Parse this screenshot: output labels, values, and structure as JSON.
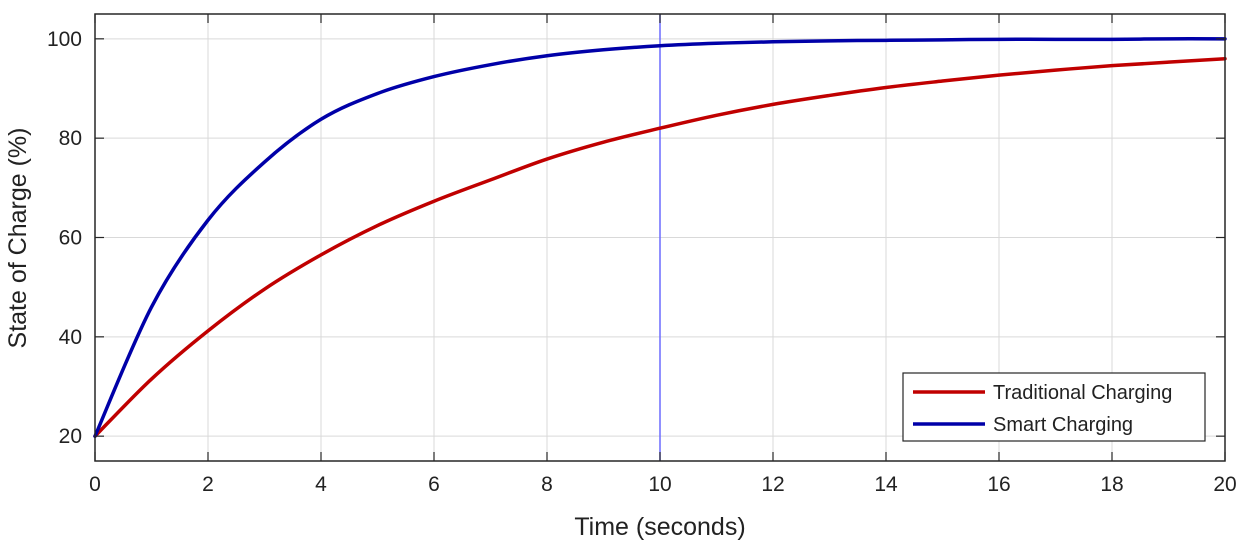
{
  "chart_data": {
    "type": "line",
    "xlabel": "Time (seconds)",
    "ylabel": "State of Charge (%)",
    "xlim": [
      0,
      20
    ],
    "ylim": [
      15,
      105
    ],
    "xticks": [
      "0",
      "2",
      "4",
      "6",
      "8",
      "10",
      "12",
      "14",
      "16",
      "18",
      "20"
    ],
    "yticks": [
      "20",
      "40",
      "60",
      "80",
      "100"
    ],
    "grid": true,
    "legend_position": "bottom-right",
    "x": [
      0,
      1,
      2,
      3,
      4,
      5,
      6,
      7,
      8,
      9,
      10,
      11,
      12,
      13,
      14,
      15,
      16,
      17,
      18,
      19,
      20
    ],
    "series": [
      {
        "name": "Traditional Charging",
        "color": "#c00000",
        "values": [
          20.0,
          31.5,
          41.2,
          49.6,
          56.5,
          62.4,
          67.3,
          71.6,
          75.8,
          79.2,
          82.0,
          84.6,
          86.8,
          88.6,
          90.2,
          91.5,
          92.7,
          93.7,
          94.6,
          95.3,
          96.0
        ]
      },
      {
        "name": "Smart Charging",
        "color": "#0000a8",
        "values": [
          20.0,
          46.0,
          63.5,
          75.2,
          83.8,
          89.0,
          92.4,
          94.8,
          96.6,
          97.8,
          98.6,
          99.1,
          99.4,
          99.6,
          99.7,
          99.8,
          99.9,
          99.9,
          99.9,
          100.0,
          100.0
        ]
      }
    ],
    "vertical_line": {
      "x": 10,
      "color": "#6b6bff"
    }
  }
}
